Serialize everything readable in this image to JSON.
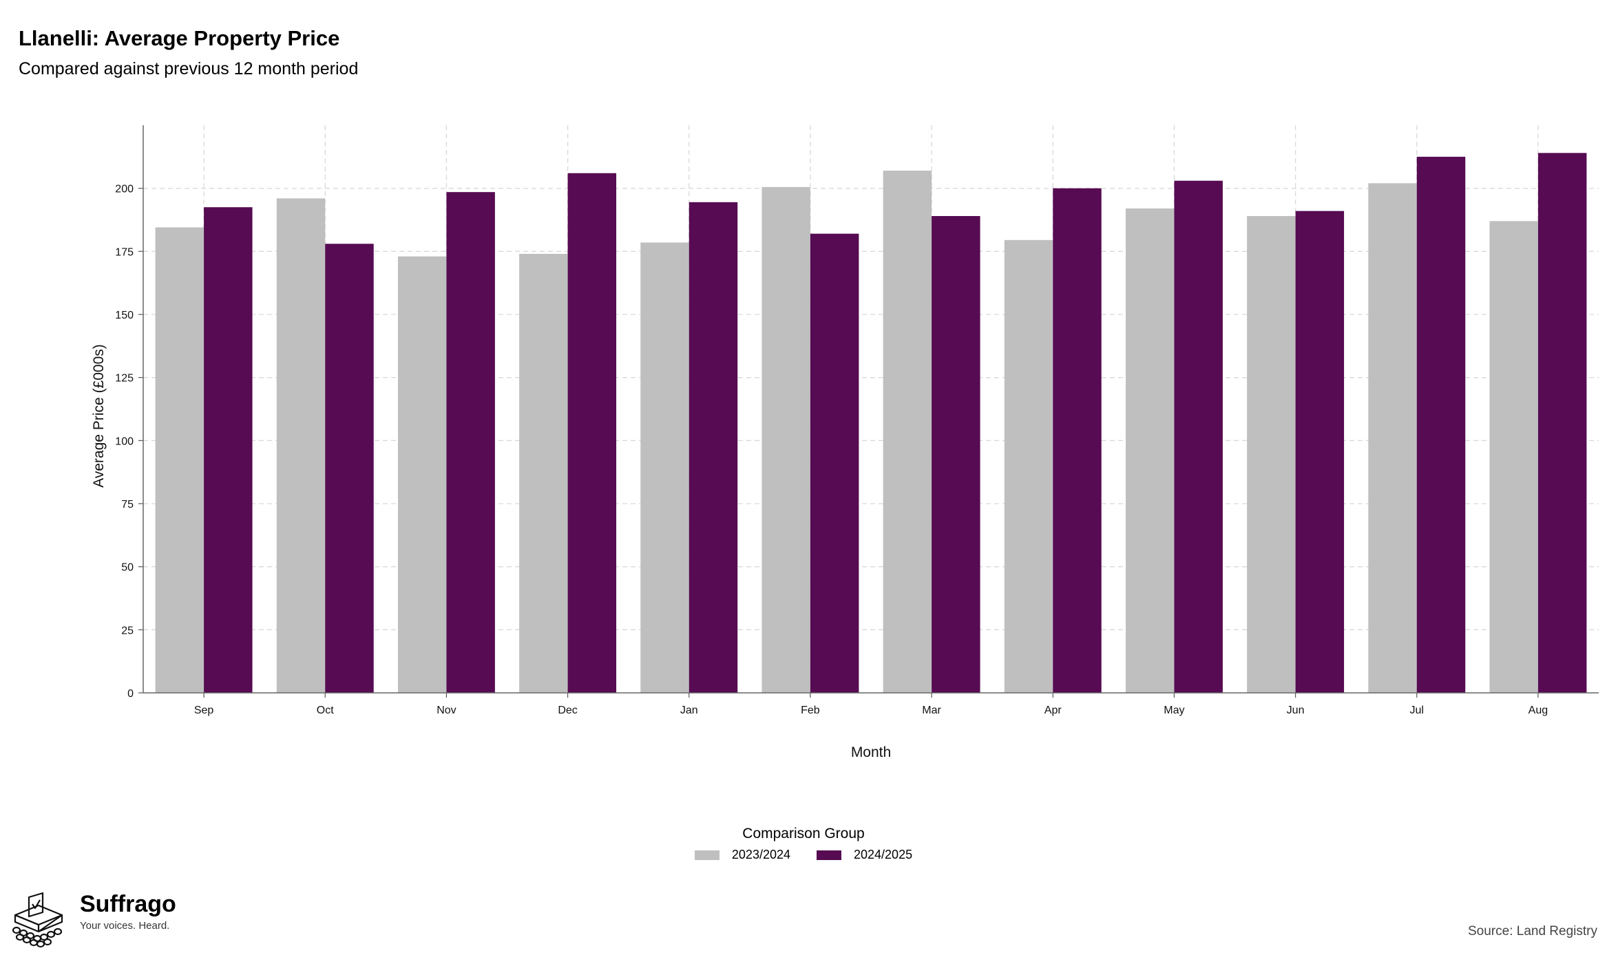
{
  "header": {
    "title": "Llanelli: Average Property Price",
    "subtitle": "Compared against previous 12 month period"
  },
  "chart_data": {
    "type": "bar",
    "xlabel": "Month",
    "ylabel": "Average Price (£000s)",
    "categories": [
      "Sep",
      "Oct",
      "Nov",
      "Dec",
      "Jan",
      "Feb",
      "Mar",
      "Apr",
      "May",
      "Jun",
      "Jul",
      "Aug"
    ],
    "series": [
      {
        "name": "2023/2024",
        "color": "#bfbfbf",
        "values": [
          184.5,
          196,
          173,
          174,
          178.5,
          200.5,
          207,
          179.5,
          192,
          189,
          202,
          187
        ]
      },
      {
        "name": "2024/2025",
        "color": "#560b52",
        "values": [
          192.5,
          178,
          198.5,
          206,
          194.5,
          182,
          189,
          200,
          203,
          191,
          212.5,
          214
        ]
      }
    ],
    "ylim": [
      0,
      225
    ],
    "yticks": [
      0,
      25,
      50,
      75,
      100,
      125,
      150,
      175,
      200
    ],
    "grid": true,
    "legend_title": "Comparison Group",
    "legend_position": "bottom"
  },
  "footer": {
    "brand_name": "Suffrago",
    "tagline": "Your voices. Heard.",
    "source": "Source: Land Registry"
  }
}
